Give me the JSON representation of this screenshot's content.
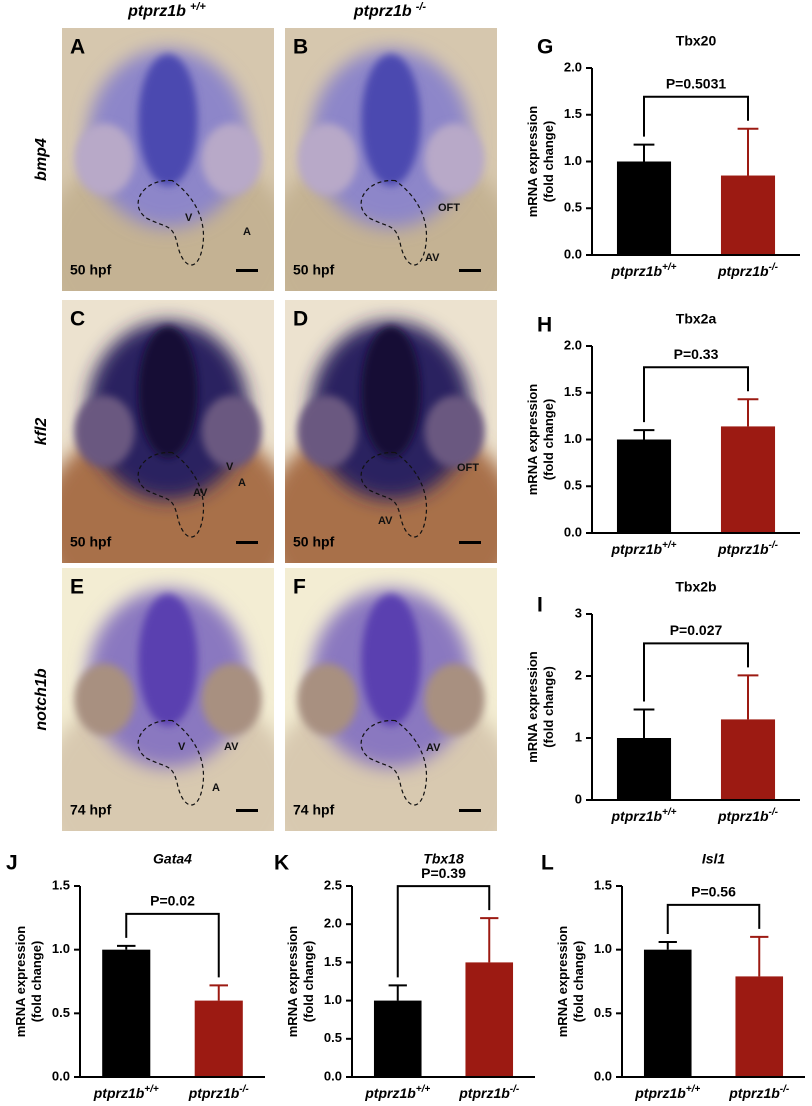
{
  "figure": {
    "columns": [
      {
        "gene": "ptprz1b",
        "genotype": "+/+"
      },
      {
        "gene": "ptprz1b",
        "genotype": "-/-"
      }
    ],
    "rows": [
      {
        "probe": "bmp4",
        "panels": [
          {
            "letter": "A",
            "stage": "50 hpf",
            "labels": [
              "V",
              "A"
            ]
          },
          {
            "letter": "B",
            "stage": "50 hpf",
            "labels": [
              "OFT",
              "AV"
            ]
          }
        ]
      },
      {
        "probe": "kfl2",
        "panels": [
          {
            "letter": "C",
            "stage": "50 hpf",
            "labels": [
              "V",
              "AV",
              "A"
            ]
          },
          {
            "letter": "D",
            "stage": "50 hpf",
            "labels": [
              "OFT",
              "AV"
            ]
          }
        ]
      },
      {
        "probe": "notch1b",
        "panels": [
          {
            "letter": "E",
            "stage": "74 hpf",
            "labels": [
              "V",
              "AV",
              "A"
            ]
          },
          {
            "letter": "F",
            "stage": "74 hpf",
            "labels": [
              "AV"
            ]
          }
        ]
      }
    ]
  },
  "chart_data": [
    {
      "type": "bar",
      "panel": "G",
      "title": "Tbx20",
      "title_italic": false,
      "ylabel": [
        "mRNA expression",
        "(fold change)"
      ],
      "categories": [
        "ptprz1b",
        "ptprz1b"
      ],
      "genotypes": [
        "+/+",
        "-/-"
      ],
      "values": [
        1.0,
        0.85
      ],
      "errors": [
        0.18,
        0.5
      ],
      "colors": [
        "#000000",
        "#9c1a12"
      ],
      "ylim": [
        0,
        2
      ],
      "yticks": [
        {
          "value": 0,
          "label": "0.0"
        },
        {
          "value": 0.5,
          "label": "0.5"
        },
        {
          "value": 1,
          "label": "1.0"
        },
        {
          "value": 1.5,
          "label": "1.5"
        },
        {
          "value": 2,
          "label": "2.0"
        }
      ],
      "annotation": "P=0.5031"
    },
    {
      "type": "bar",
      "panel": "H",
      "title": "Tbx2a",
      "title_italic": false,
      "ylabel": [
        "mRNA expression",
        "(fold change)"
      ],
      "categories": [
        "ptprz1b",
        "ptprz1b"
      ],
      "genotypes": [
        "+/+",
        "-/-"
      ],
      "values": [
        1.0,
        1.14
      ],
      "errors": [
        0.1,
        0.29
      ],
      "colors": [
        "#000000",
        "#9c1a12"
      ],
      "ylim": [
        0,
        2
      ],
      "yticks": [
        {
          "value": 0,
          "label": "0.0"
        },
        {
          "value": 0.5,
          "label": "0.5"
        },
        {
          "value": 1,
          "label": "1.0"
        },
        {
          "value": 1.5,
          "label": "1.5"
        },
        {
          "value": 2,
          "label": "2.0"
        }
      ],
      "annotation": "P=0.33"
    },
    {
      "type": "bar",
      "panel": "I",
      "title": "Tbx2b",
      "title_italic": false,
      "ylabel": [
        "mRNA expression",
        "(fold change)"
      ],
      "categories": [
        "ptprz1b",
        "ptprz1b"
      ],
      "genotypes": [
        "+/+",
        "-/-"
      ],
      "values": [
        1.0,
        1.3
      ],
      "errors": [
        0.46,
        0.71
      ],
      "colors": [
        "#000000",
        "#9c1a12"
      ],
      "ylim": [
        0,
        3
      ],
      "yticks": [
        0,
        1,
        2,
        3
      ],
      "annotation": "P=0.027"
    },
    {
      "type": "bar",
      "panel": "J",
      "title": "Gata4",
      "title_italic": true,
      "ylabel": [
        "mRNA expression",
        "(fold change)"
      ],
      "categories": [
        "ptprz1b",
        "ptprz1b"
      ],
      "genotypes": [
        "+/+",
        "-/-"
      ],
      "values": [
        1.0,
        0.6
      ],
      "errors": [
        0.03,
        0.12
      ],
      "colors": [
        "#000000",
        "#9c1a12"
      ],
      "ylim": [
        0,
        1.5
      ],
      "yticks": [
        {
          "value": 0,
          "label": "0.0"
        },
        {
          "value": 0.5,
          "label": "0.5"
        },
        {
          "value": 1,
          "label": "1.0"
        },
        {
          "value": 1.5,
          "label": "1.5"
        }
      ],
      "annotation": "P=0.02"
    },
    {
      "type": "bar",
      "panel": "K",
      "title": "Tbx18",
      "title_italic": true,
      "ylabel": [
        "mRNA expression",
        "(fold change)"
      ],
      "categories": [
        "ptprz1b",
        "ptprz1b"
      ],
      "genotypes": [
        "+/+",
        "-/-"
      ],
      "values": [
        1.0,
        1.5
      ],
      "errors": [
        0.2,
        0.58
      ],
      "colors": [
        "#000000",
        "#9c1a12"
      ],
      "ylim": [
        0,
        2.5
      ],
      "yticks": [
        {
          "value": 0,
          "label": "0.0"
        },
        {
          "value": 0.5,
          "label": "0.5"
        },
        {
          "value": 1,
          "label": "1.0"
        },
        {
          "value": 1.5,
          "label": "1.5"
        },
        {
          "value": 2,
          "label": "2.0"
        },
        {
          "value": 2.5,
          "label": "2.5"
        }
      ],
      "annotation": "P=0.39"
    },
    {
      "type": "bar",
      "panel": "L",
      "title": "Isl1",
      "title_italic": true,
      "ylabel": [
        "mRNA expression",
        "(fold change)"
      ],
      "categories": [
        "ptprz1b",
        "ptprz1b"
      ],
      "genotypes": [
        "+/+",
        "-/-"
      ],
      "values": [
        1.0,
        0.79
      ],
      "errors": [
        0.06,
        0.31
      ],
      "colors": [
        "#000000",
        "#9c1a12"
      ],
      "ylim": [
        0,
        1.5
      ],
      "yticks": [
        {
          "value": 0,
          "label": "0.0"
        },
        {
          "value": 0.5,
          "label": "0.5"
        },
        {
          "value": 1,
          "label": "1.0"
        },
        {
          "value": 1.5,
          "label": "1.5"
        }
      ],
      "annotation": "P=0.56"
    }
  ]
}
